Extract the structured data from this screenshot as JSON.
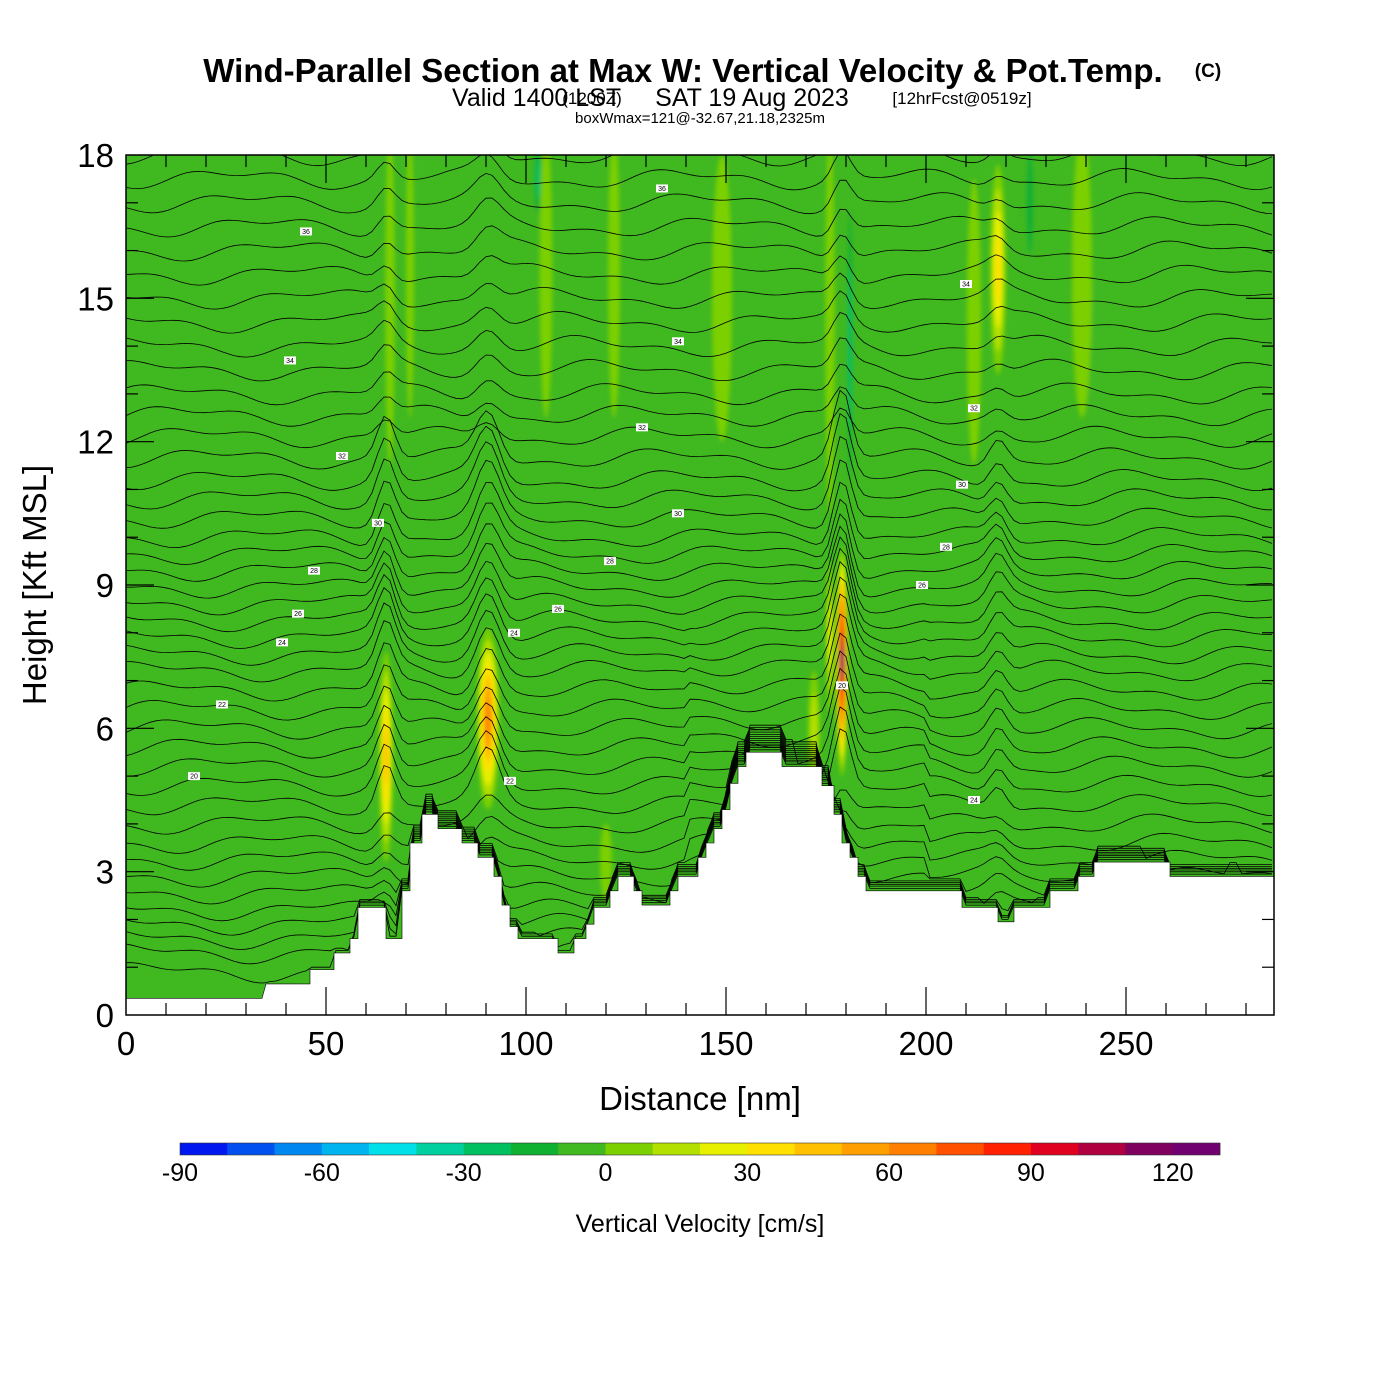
{
  "title": {
    "main": "Wind-Parallel Section at Max W: Vertical Velocity & Pot.Temp.",
    "copyright": "(C)",
    "valid_prefix": "Valid 1400 LST",
    "valid_utc": "(1200Z)",
    "valid_date": "SAT 19 Aug 2023",
    "forecast": "[12hrFcst@0519z]",
    "box_info": "boxWmax=121@-32.67,21.18,2325m"
  },
  "chart_data": {
    "type": "heatmap",
    "title": "Wind-Parallel Section at Max W: Vertical Velocity & Pot.Temp.",
    "xlabel": "Distance [nm]",
    "ylabel": "Height [Kft MSL]",
    "xlim": [
      0,
      287
    ],
    "ylim": [
      0,
      18
    ],
    "x_ticks": [
      0,
      50,
      100,
      150,
      200,
      250
    ],
    "x_tick_labels": [
      "0",
      "50",
      "100",
      "150",
      "200",
      "250"
    ],
    "y_ticks": [
      0,
      3,
      6,
      9,
      12,
      15,
      18
    ],
    "y_tick_labels": [
      "0",
      "3",
      "6",
      "9",
      "12",
      "15",
      "18"
    ],
    "grid": false,
    "terrain": [
      [
        0,
        0.35
      ],
      [
        34,
        0.35
      ],
      [
        35,
        0.65
      ],
      [
        46,
        0.65
      ],
      [
        46,
        0.95
      ],
      [
        52,
        0.95
      ],
      [
        52,
        1.3
      ],
      [
        56,
        1.3
      ],
      [
        56,
        1.6
      ],
      [
        58,
        1.6
      ],
      [
        58,
        2.25
      ],
      [
        65,
        2.25
      ],
      [
        65,
        1.6
      ],
      [
        69,
        1.6
      ],
      [
        69,
        2.6
      ],
      [
        71,
        2.6
      ],
      [
        71,
        3.6
      ],
      [
        74,
        3.6
      ],
      [
        74,
        4.2
      ],
      [
        78,
        4.2
      ],
      [
        78,
        3.9
      ],
      [
        84,
        3.9
      ],
      [
        84,
        3.6
      ],
      [
        88,
        3.6
      ],
      [
        88,
        3.3
      ],
      [
        92,
        3.3
      ],
      [
        92,
        2.9
      ],
      [
        94,
        2.9
      ],
      [
        94,
        2.3
      ],
      [
        96,
        2.3
      ],
      [
        96,
        1.85
      ],
      [
        98,
        1.85
      ],
      [
        98,
        1.6
      ],
      [
        108,
        1.6
      ],
      [
        108,
        1.3
      ],
      [
        112,
        1.3
      ],
      [
        112,
        1.6
      ],
      [
        115,
        1.6
      ],
      [
        115,
        1.9
      ],
      [
        117,
        1.9
      ],
      [
        117,
        2.25
      ],
      [
        121,
        2.25
      ],
      [
        121,
        2.6
      ],
      [
        123,
        2.6
      ],
      [
        123,
        2.9
      ],
      [
        127,
        2.9
      ],
      [
        127,
        2.6
      ],
      [
        129,
        2.6
      ],
      [
        129,
        2.3
      ],
      [
        136,
        2.3
      ],
      [
        136,
        2.6
      ],
      [
        138,
        2.6
      ],
      [
        138,
        2.9
      ],
      [
        143,
        2.9
      ],
      [
        143,
        3.3
      ],
      [
        145,
        3.3
      ],
      [
        145,
        3.6
      ],
      [
        147,
        3.6
      ],
      [
        147,
        3.9
      ],
      [
        149,
        3.9
      ],
      [
        149,
        4.3
      ],
      [
        151,
        4.3
      ],
      [
        151,
        4.85
      ],
      [
        153,
        4.85
      ],
      [
        153,
        5.2
      ],
      [
        155,
        5.2
      ],
      [
        155,
        5.5
      ],
      [
        164,
        5.5
      ],
      [
        164,
        5.2
      ],
      [
        174,
        5.2
      ],
      [
        174,
        4.8
      ],
      [
        177,
        4.8
      ],
      [
        177,
        4.2
      ],
      [
        179,
        4.2
      ],
      [
        179,
        3.6
      ],
      [
        181,
        3.6
      ],
      [
        181,
        3.3
      ],
      [
        183,
        3.3
      ],
      [
        183,
        2.9
      ],
      [
        185,
        2.9
      ],
      [
        185,
        2.6
      ],
      [
        209,
        2.6
      ],
      [
        209,
        2.25
      ],
      [
        218,
        2.25
      ],
      [
        218,
        1.95
      ],
      [
        222,
        1.95
      ],
      [
        222,
        2.25
      ],
      [
        231,
        2.25
      ],
      [
        231,
        2.6
      ],
      [
        238,
        2.6
      ],
      [
        238,
        2.9
      ],
      [
        242,
        2.9
      ],
      [
        242,
        3.2
      ],
      [
        261,
        3.2
      ],
      [
        261,
        2.9
      ],
      [
        287,
        2.9
      ]
    ],
    "updrafts": [
      {
        "x": 65,
        "z": 5.4,
        "width": 1.8,
        "depth": 2.2,
        "value": 55
      },
      {
        "x": 90.5,
        "z": 6.2,
        "width": 2.8,
        "depth": 1.9,
        "value": 70
      },
      {
        "x": 179,
        "z": 7.4,
        "width": 1.5,
        "depth": 2.4,
        "value": 121
      },
      {
        "x": 176,
        "z": 7.9,
        "width": 1.0,
        "depth": 1.6,
        "value": 35
      },
      {
        "x": 218,
        "z": 15.6,
        "width": 2.0,
        "depth": 2.2,
        "value": 45
      },
      {
        "x": 66,
        "z": 15.0,
        "width": 1.2,
        "depth": 3.5,
        "value": 15
      },
      {
        "x": 71,
        "z": 15.5,
        "width": 1.0,
        "depth": 3.0,
        "value": 15
      },
      {
        "x": 105,
        "z": 15.5,
        "width": 1.6,
        "depth": 3.0,
        "value": 15
      },
      {
        "x": 122,
        "z": 15.5,
        "width": 1.5,
        "depth": 3.0,
        "value": 12
      },
      {
        "x": 149,
        "z": 15.0,
        "width": 2.5,
        "depth": 3.0,
        "value": 15
      },
      {
        "x": 176,
        "z": 14.5,
        "width": 1.2,
        "depth": 4.0,
        "value": 12
      },
      {
        "x": 212,
        "z": 14.5,
        "width": 1.8,
        "depth": 3.0,
        "value": 12
      },
      {
        "x": 239,
        "z": 15.5,
        "width": 2.5,
        "depth": 3.0,
        "value": 10
      },
      {
        "x": 120,
        "z": 3.2,
        "width": 1.5,
        "depth": 0.8,
        "value": 15
      },
      {
        "x": 172,
        "z": 6.0,
        "width": 1.5,
        "depth": 1.2,
        "value": 20
      }
    ],
    "downdrafts": [
      {
        "x": 181,
        "z": 14.0,
        "width": 1.0,
        "depth": 4.0,
        "value": -35
      },
      {
        "x": 103,
        "z": 17.5,
        "width": 1.4,
        "depth": 1.0,
        "value": -30
      },
      {
        "x": 226,
        "z": 17.0,
        "width": 1.5,
        "depth": 1.8,
        "value": -28
      },
      {
        "x": 200,
        "z": 6.0,
        "width": 1.6,
        "depth": 1.8,
        "value": -18
      },
      {
        "x": 160,
        "z": 17.2,
        "width": 2.5,
        "depth": 1.5,
        "value": -12
      },
      {
        "x": 243,
        "z": 13.0,
        "width": 2.5,
        "depth": 2.5,
        "value": -8
      }
    ],
    "theta_contours": {
      "base_levels_kft": [
        0.9,
        1.3,
        1.6,
        1.9,
        2.2,
        2.55,
        2.9,
        3.25,
        3.6,
        4.0,
        4.4,
        4.8,
        5.2,
        5.6,
        6.0,
        6.4,
        6.8,
        7.2,
        7.55,
        7.9,
        8.25,
        8.6,
        8.95,
        9.3,
        9.65,
        10.0,
        10.4,
        10.8,
        11.2,
        11.65,
        12.1,
        12.55,
        13.0,
        13.5,
        14.0,
        14.5,
        15.0,
        15.5,
        16.0,
        16.5,
        17.0,
        17.5,
        18.0
      ],
      "labels": [
        {
          "text": "20",
          "x": 17,
          "z": 5.0
        },
        {
          "text": "22",
          "x": 24,
          "z": 6.5
        },
        {
          "text": "24",
          "x": 39,
          "z": 7.8
        },
        {
          "text": "26",
          "x": 43,
          "z": 8.4
        },
        {
          "text": "28",
          "x": 47,
          "z": 9.3
        },
        {
          "text": "30",
          "x": 63,
          "z": 10.3
        },
        {
          "text": "32",
          "x": 54,
          "z": 11.7
        },
        {
          "text": "34",
          "x": 41,
          "z": 13.7
        },
        {
          "text": "36",
          "x": 45,
          "z": 16.4
        },
        {
          "text": "24",
          "x": 97,
          "z": 8.0
        },
        {
          "text": "26",
          "x": 108,
          "z": 8.5
        },
        {
          "text": "28",
          "x": 121,
          "z": 9.5
        },
        {
          "text": "30",
          "x": 138,
          "z": 10.5
        },
        {
          "text": "32",
          "x": 129,
          "z": 12.3
        },
        {
          "text": "34",
          "x": 138,
          "z": 14.1
        },
        {
          "text": "36",
          "x": 134,
          "z": 17.3
        },
        {
          "text": "20",
          "x": 179,
          "z": 6.9
        },
        {
          "text": "22",
          "x": 96,
          "z": 4.9
        },
        {
          "text": "26",
          "x": 199,
          "z": 9.0
        },
        {
          "text": "28",
          "x": 205,
          "z": 9.8
        },
        {
          "text": "30",
          "x": 209,
          "z": 11.1
        },
        {
          "text": "32",
          "x": 212,
          "z": 12.7
        },
        {
          "text": "34",
          "x": 210,
          "z": 15.3
        },
        {
          "text": "24",
          "x": 212,
          "z": 4.5
        }
      ]
    },
    "colorbar": {
      "label": "Vertical Velocity [cm/s]",
      "min": -90,
      "max": 130,
      "step": 10,
      "tick_values": [
        -90,
        -60,
        -30,
        0,
        30,
        60,
        90,
        120
      ],
      "tick_labels": [
        "-90",
        "-60",
        "-30",
        "0",
        "30",
        "60",
        "90",
        "120"
      ],
      "colors": [
        "#0018f0",
        "#0050f0",
        "#0088f0",
        "#00b4f0",
        "#00e0e8",
        "#00d0a0",
        "#00c060",
        "#10b030",
        "#40b820",
        "#7cd000",
        "#b4e000",
        "#e8f000",
        "#ffe000",
        "#ffc000",
        "#ffa000",
        "#ff8000",
        "#ff5000",
        "#ff2000",
        "#e00020",
        "#b00040",
        "#800060",
        "#700070"
      ]
    }
  }
}
